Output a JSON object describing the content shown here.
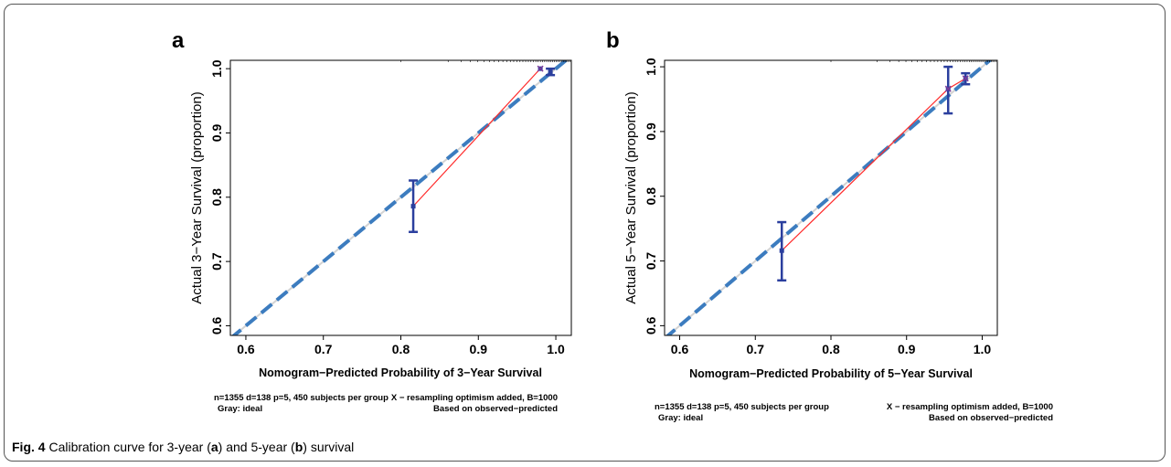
{
  "caption": {
    "label": "Fig. 4",
    "text_1": " Calibration curve for 3-year (",
    "ref_a": "a",
    "text_2": ") and 5-year (",
    "ref_b": "b",
    "text_3": ") survival"
  },
  "colors": {
    "ideal": "#d3d3d3",
    "apparent": "#ff2a2a",
    "bias_corrected": "#3c7cbf",
    "errorbar": "#2b3f9e",
    "axis": "#000000"
  },
  "chart_data": [
    {
      "panel": "a",
      "type": "line",
      "xlabel": "Nomogram−Predicted Probability of 3−Year Survival",
      "ylabel": "Actual 3−Year Survival (proportion)",
      "xlim": [
        0.58,
        1.02
      ],
      "ylim": [
        0.585,
        1.013
      ],
      "xticks": [
        0.6,
        0.7,
        0.8,
        0.9,
        1.0
      ],
      "xtick_labels": [
        "0.6",
        "0.7",
        "0.8",
        "0.9",
        "1.0"
      ],
      "yticks": [
        0.6,
        0.7,
        0.8,
        0.9,
        1.0
      ],
      "ytick_labels": [
        "0.6",
        "0.7",
        "0.8",
        "0.9",
        "1.0"
      ],
      "ideal": {
        "x": [
          0.58,
          1.02
        ],
        "y": [
          0.58,
          1.02
        ]
      },
      "apparent": {
        "x": [
          0.816,
          0.98
        ],
        "y": [
          0.786,
          1.0
        ]
      },
      "bias_corrected": {
        "x": [
          0.58,
          1.02
        ],
        "y": [
          0.58,
          1.02
        ]
      },
      "points": {
        "x": [
          0.816,
          0.98,
          0.993
        ],
        "y": [
          0.786,
          1.0,
          0.995
        ]
      },
      "errorbars": [
        {
          "x": 0.816,
          "low": 0.746,
          "high": 0.826
        },
        {
          "x": 0.993,
          "low": 0.99,
          "high": 1.0
        }
      ],
      "resample_marks": [
        0.98
      ],
      "footnote_left_1": "n=1355 d=138 p=5, 450 subjects per group",
      "footnote_left_2": "Gray: ideal",
      "footnote_right_1": "X − resampling optimism added, B=1000",
      "footnote_right_2": "Based on observed−predicted"
    },
    {
      "panel": "b",
      "type": "line",
      "xlabel": "Nomogram−Predicted Probability of 5−Year Survival",
      "ylabel": "Actual 5−Year Survival (proportion)",
      "xlim": [
        0.58,
        1.02
      ],
      "ylim": [
        0.585,
        1.01
      ],
      "xticks": [
        0.6,
        0.7,
        0.8,
        0.9,
        1.0
      ],
      "xtick_labels": [
        "0.6",
        "0.7",
        "0.8",
        "0.9",
        "1.0"
      ],
      "yticks": [
        0.6,
        0.7,
        0.8,
        0.9,
        1.0
      ],
      "ytick_labels": [
        "0.6",
        "0.7",
        "0.8",
        "0.9",
        "1.0"
      ],
      "ideal": {
        "x": [
          0.58,
          1.02
        ],
        "y": [
          0.58,
          1.02
        ]
      },
      "apparent": {
        "x": [
          0.735,
          0.955,
          0.978
        ],
        "y": [
          0.716,
          0.966,
          0.982
        ]
      },
      "bias_corrected": {
        "x": [
          0.58,
          1.02
        ],
        "y": [
          0.58,
          1.02
        ]
      },
      "points": {
        "x": [
          0.735,
          0.955,
          0.978
        ],
        "y": [
          0.716,
          0.966,
          0.982
        ]
      },
      "errorbars": [
        {
          "x": 0.735,
          "low": 0.67,
          "high": 0.76
        },
        {
          "x": 0.955,
          "low": 0.928,
          "high": 1.0
        },
        {
          "x": 0.978,
          "low": 0.973,
          "high": 0.99
        }
      ],
      "resample_marks": [
        0.955,
        0.978
      ],
      "footnote_left_1": "n=1355 d=138 p=5, 450 subjects per group",
      "footnote_left_2": "Gray: ideal",
      "footnote_right_1": "X − resampling optimism added, B=1000",
      "footnote_right_2": "Based on observed−predicted"
    }
  ]
}
